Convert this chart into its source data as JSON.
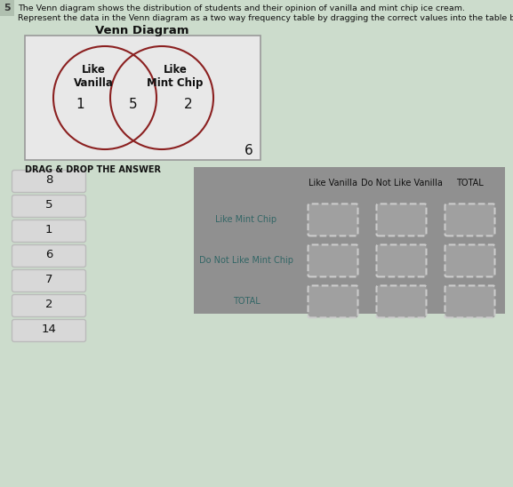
{
  "title_main": "The Venn diagram shows the distribution of students and their opinion of vanilla and mint chip ice cream.",
  "title_sub": "Represent the data in the Venn diagram as a two way frequency table by dragging the correct values into the table below.",
  "venn_title": "Venn Diagram",
  "venn_left_label": "Like\nVanilla",
  "venn_right_label": "Like\nMint Chip",
  "venn_left_only": "1",
  "venn_intersect": "5",
  "venn_right_only": "2",
  "venn_outside": "6",
  "drag_drop_label": "DRAG & DROP THE ANSWER",
  "drag_values": [
    "8",
    "5",
    "1",
    "6",
    "7",
    "2",
    "14"
  ],
  "table_col_headers": [
    "Like Vanilla",
    "Do Not Like Vanilla",
    "TOTAL"
  ],
  "table_row_headers": [
    "Like Mint Chip",
    "Do Not Like Mint Chip",
    "TOTAL"
  ],
  "venn_circle_color": "#8b2020",
  "venn_box_edge": "#999999",
  "venn_box_fill": "#e8e8e8",
  "drag_box_fill": "#d8d8d8",
  "drag_box_edge": "#bbbbbb",
  "table_bg_fill": "#909090",
  "cell_fill": "#a0a0a0",
  "cell_edge": "#cccccc",
  "badge_fill": "#b0c0b0",
  "text_dark": "#111111",
  "text_mid": "#444444",
  "text_teal": "#336666",
  "text_purple": "#553366"
}
